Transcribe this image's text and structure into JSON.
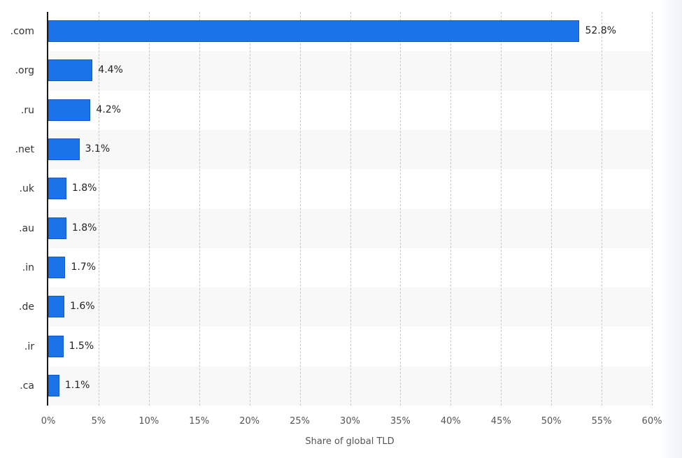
{
  "chart_data": {
    "type": "bar",
    "orientation": "horizontal",
    "title": "",
    "xlabel": "Share of global TLD",
    "ylabel": "",
    "categories": [
      ".com",
      ".org",
      ".ru",
      ".net",
      ".uk",
      ".au",
      ".in",
      ".de",
      ".ir",
      ".ca"
    ],
    "values": [
      52.8,
      4.4,
      4.2,
      3.1,
      1.8,
      1.8,
      1.7,
      1.6,
      1.5,
      1.1
    ],
    "value_labels": [
      "52.8%",
      "4.4%",
      "4.2%",
      "3.1%",
      "1.8%",
      "1.8%",
      "1.7%",
      "1.6%",
      "1.5%",
      "1.1%"
    ],
    "xlim": [
      0,
      60
    ],
    "x_ticks": [
      "0%",
      "5%",
      "10%",
      "15%",
      "20%",
      "25%",
      "30%",
      "35%",
      "40%",
      "45%",
      "50%",
      "55%",
      "60%"
    ],
    "grid": true,
    "legend": null,
    "bar_color": "#1a73e8"
  }
}
